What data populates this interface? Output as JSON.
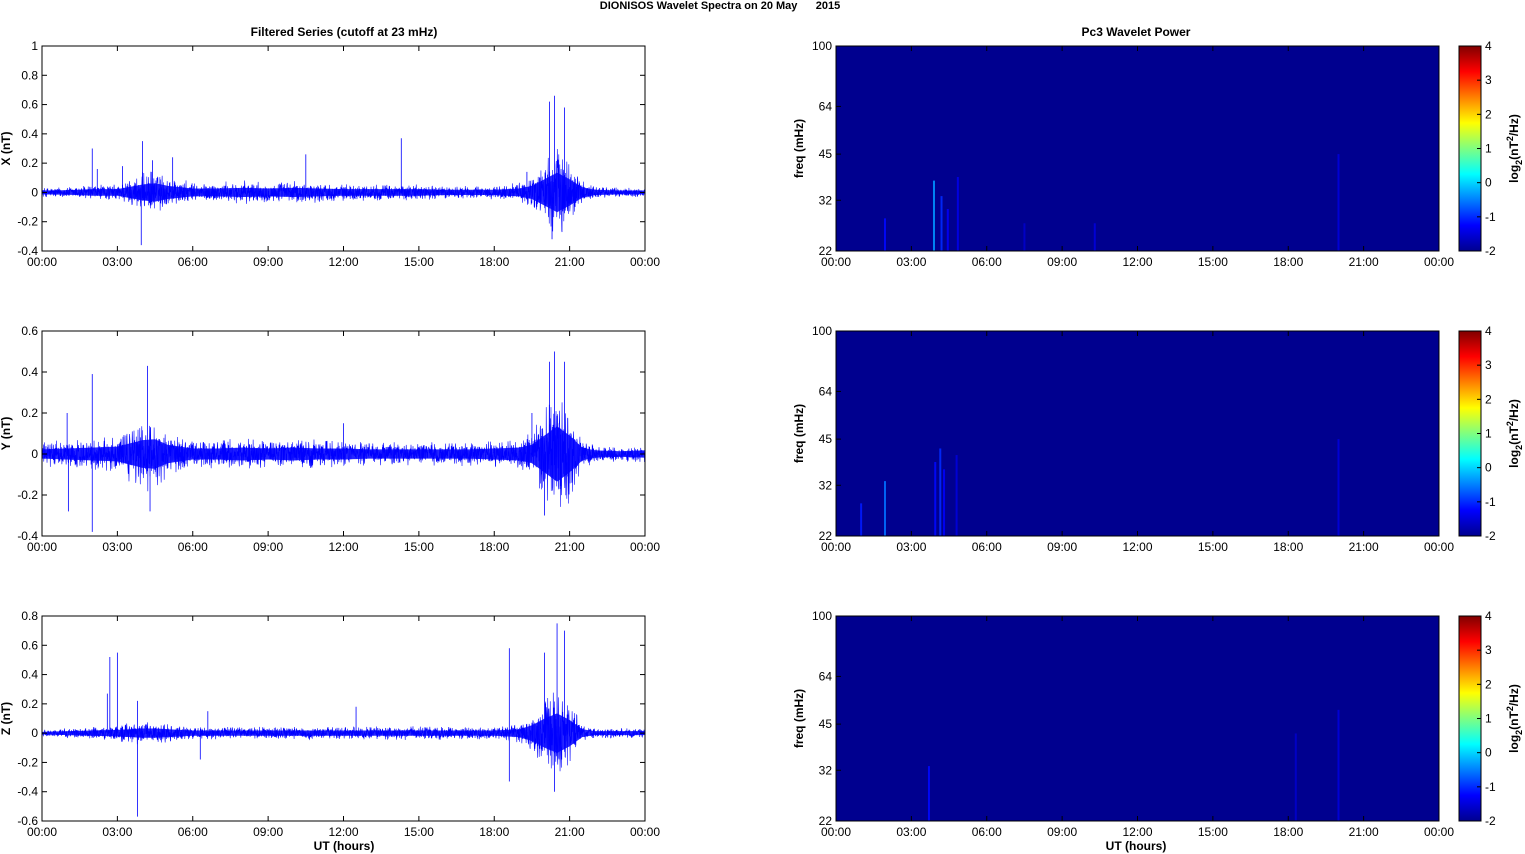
{
  "figure": {
    "title": "DIONISOS Wavelet Spectra on 20 May      2015",
    "left_column_title": "Filtered Series (cutoff at 23 mHz)",
    "right_column_title": "Pc3 Wavelet Power",
    "xlabel": "UT (hours)"
  },
  "colors": {
    "trace": "#0000ff",
    "spectrogram_background": "#00008f",
    "axis": "#000000"
  },
  "chart_data": [
    {
      "type": "line",
      "component": "X",
      "ylabel": "X (nT)",
      "x_range_hours": [
        0,
        24
      ],
      "x_ticks": [
        "00:00",
        "03:00",
        "06:00",
        "09:00",
        "12:00",
        "15:00",
        "18:00",
        "21:00",
        "00:00"
      ],
      "ylim": [
        -0.4,
        1
      ],
      "y_ticks": [
        -0.4,
        -0.2,
        0,
        0.2,
        0.4,
        0.6,
        0.8,
        1
      ],
      "envelope_hours": [
        0,
        1,
        2,
        3,
        4,
        4.5,
        5,
        6,
        7,
        8,
        9,
        10,
        11,
        12,
        13,
        14,
        15,
        16,
        17,
        18,
        19,
        19.5,
        20,
        20.5,
        21,
        21.5,
        22,
        23,
        24
      ],
      "envelope_amplitude_nT": [
        0.03,
        0.035,
        0.05,
        0.05,
        0.12,
        0.14,
        0.1,
        0.06,
        0.06,
        0.07,
        0.06,
        0.07,
        0.06,
        0.05,
        0.05,
        0.05,
        0.05,
        0.04,
        0.04,
        0.04,
        0.06,
        0.1,
        0.2,
        0.3,
        0.2,
        0.08,
        0.04,
        0.03,
        0.03
      ],
      "spikes": [
        {
          "t": 2.0,
          "v": 0.3
        },
        {
          "t": 2.2,
          "v": 0.16
        },
        {
          "t": 3.2,
          "v": 0.18
        },
        {
          "t": 4.0,
          "v": 0.35
        },
        {
          "t": 3.95,
          "v": -0.36
        },
        {
          "t": 4.4,
          "v": 0.22
        },
        {
          "t": 5.2,
          "v": 0.24
        },
        {
          "t": 10.5,
          "v": 0.26
        },
        {
          "t": 14.3,
          "v": 0.37
        },
        {
          "t": 19.3,
          "v": 0.14
        },
        {
          "t": 20.2,
          "v": 0.62
        },
        {
          "t": 20.4,
          "v": 0.66
        },
        {
          "t": 20.8,
          "v": 0.58
        },
        {
          "t": 20.3,
          "v": -0.32
        }
      ]
    },
    {
      "type": "line",
      "component": "Y",
      "ylabel": "Y (nT)",
      "x_range_hours": [
        0,
        24
      ],
      "x_ticks": [
        "00:00",
        "03:00",
        "06:00",
        "09:00",
        "12:00",
        "15:00",
        "18:00",
        "21:00",
        "00:00"
      ],
      "ylim": [
        -0.4,
        0.6
      ],
      "y_ticks": [
        -0.4,
        -0.2,
        0,
        0.2,
        0.4,
        0.6
      ],
      "envelope_hours": [
        0,
        1,
        2,
        3,
        4,
        4.5,
        5,
        6,
        7,
        8,
        9,
        10,
        11,
        12,
        13,
        14,
        15,
        16,
        17,
        18,
        19,
        19.5,
        20,
        20.5,
        21,
        21.5,
        22,
        23,
        24
      ],
      "envelope_amplitude_nT": [
        0.05,
        0.06,
        0.07,
        0.08,
        0.15,
        0.16,
        0.1,
        0.06,
        0.06,
        0.07,
        0.06,
        0.07,
        0.06,
        0.06,
        0.05,
        0.05,
        0.05,
        0.05,
        0.05,
        0.06,
        0.07,
        0.1,
        0.2,
        0.3,
        0.2,
        0.07,
        0.04,
        0.03,
        0.04
      ],
      "spikes": [
        {
          "t": 1.0,
          "v": 0.2
        },
        {
          "t": 1.05,
          "v": -0.28
        },
        {
          "t": 2.0,
          "v": 0.39
        },
        {
          "t": 2.0,
          "v": -0.38
        },
        {
          "t": 4.2,
          "v": 0.43
        },
        {
          "t": 4.3,
          "v": -0.28
        },
        {
          "t": 12.0,
          "v": 0.15
        },
        {
          "t": 19.5,
          "v": 0.2
        },
        {
          "t": 20.2,
          "v": 0.45
        },
        {
          "t": 20.4,
          "v": 0.5
        },
        {
          "t": 20.8,
          "v": 0.45
        },
        {
          "t": 20.0,
          "v": -0.3
        }
      ]
    },
    {
      "type": "line",
      "component": "Z",
      "ylabel": "Z (nT)",
      "x_range_hours": [
        0,
        24
      ],
      "x_ticks": [
        "00:00",
        "03:00",
        "06:00",
        "09:00",
        "12:00",
        "15:00",
        "18:00",
        "21:00",
        "00:00"
      ],
      "ylim": [
        -0.6,
        0.8
      ],
      "y_ticks": [
        -0.6,
        -0.4,
        -0.2,
        0,
        0.2,
        0.4,
        0.6,
        0.8
      ],
      "envelope_hours": [
        0,
        1,
        2,
        3,
        4,
        4.5,
        5,
        6,
        7,
        8,
        9,
        10,
        11,
        12,
        13,
        14,
        15,
        16,
        17,
        18,
        19,
        19.5,
        20,
        20.5,
        21,
        21.5,
        22,
        23,
        24
      ],
      "envelope_amplitude_nT": [
        0.02,
        0.03,
        0.04,
        0.05,
        0.07,
        0.07,
        0.06,
        0.04,
        0.04,
        0.04,
        0.04,
        0.04,
        0.04,
        0.04,
        0.04,
        0.04,
        0.04,
        0.04,
        0.04,
        0.04,
        0.06,
        0.12,
        0.22,
        0.3,
        0.2,
        0.06,
        0.03,
        0.03,
        0.03
      ],
      "spikes": [
        {
          "t": 2.6,
          "v": 0.27
        },
        {
          "t": 2.7,
          "v": 0.52
        },
        {
          "t": 3.0,
          "v": 0.55
        },
        {
          "t": 3.8,
          "v": 0.22
        },
        {
          "t": 3.8,
          "v": -0.57
        },
        {
          "t": 6.3,
          "v": -0.18
        },
        {
          "t": 6.6,
          "v": 0.15
        },
        {
          "t": 12.5,
          "v": 0.18
        },
        {
          "t": 18.6,
          "v": 0.58
        },
        {
          "t": 18.6,
          "v": -0.33
        },
        {
          "t": 20.0,
          "v": 0.55
        },
        {
          "t": 20.5,
          "v": 0.75
        },
        {
          "t": 20.8,
          "v": 0.7
        },
        {
          "t": 20.4,
          "v": -0.4
        }
      ]
    },
    {
      "type": "heatmap",
      "component": "X",
      "ylabel": "freq (mHz)",
      "x_range_hours": [
        0,
        24
      ],
      "x_ticks": [
        "00:00",
        "03:00",
        "06:00",
        "09:00",
        "12:00",
        "15:00",
        "18:00",
        "21:00",
        "00:00"
      ],
      "y_range_mHz": [
        22,
        100
      ],
      "y_ticks": [
        22,
        32,
        45,
        64,
        100
      ],
      "y_scale": "log",
      "colorbar_label_prefix": "log",
      "colorbar_label_sub": "2",
      "colorbar_label_mid": "(nT",
      "colorbar_label_sup": "2",
      "colorbar_label_suffix": "/Hz)",
      "clim": [
        -2,
        4
      ],
      "colorbar_ticks": [
        -2,
        -1,
        0,
        1,
        2,
        3,
        4
      ],
      "features": [
        {
          "t": 1.95,
          "f_top": 28,
          "level": -1.2
        },
        {
          "t": 3.9,
          "f_top": 37,
          "level": -0.4
        },
        {
          "t": 4.2,
          "f_top": 33,
          "level": -1.0
        },
        {
          "t": 4.45,
          "f_top": 30,
          "level": -1.3
        },
        {
          "t": 4.85,
          "f_top": 38,
          "level": -1.4
        },
        {
          "t": 7.5,
          "f_top": 27,
          "level": -1.6
        },
        {
          "t": 10.3,
          "f_top": 27,
          "level": -1.5
        },
        {
          "t": 20.0,
          "f_top": 45,
          "level": -1.5
        }
      ]
    },
    {
      "type": "heatmap",
      "component": "Y",
      "ylabel": "freq (mHz)",
      "x_range_hours": [
        0,
        24
      ],
      "x_ticks": [
        "00:00",
        "03:00",
        "06:00",
        "09:00",
        "12:00",
        "15:00",
        "18:00",
        "21:00",
        "00:00"
      ],
      "y_range_mHz": [
        22,
        100
      ],
      "y_ticks": [
        22,
        32,
        45,
        64,
        100
      ],
      "y_scale": "log",
      "colorbar_label_prefix": "log",
      "colorbar_label_sub": "2",
      "colorbar_label_mid": "(nT",
      "colorbar_label_sup": "2",
      "colorbar_label_suffix": "/Hz)",
      "clim": [
        -2,
        4
      ],
      "colorbar_ticks": [
        -2,
        -1,
        0,
        1,
        2,
        3,
        4
      ],
      "features": [
        {
          "t": 1.0,
          "f_top": 28,
          "level": -1.1
        },
        {
          "t": 1.95,
          "f_top": 33,
          "level": -0.6
        },
        {
          "t": 3.95,
          "f_top": 38,
          "level": -1.2
        },
        {
          "t": 4.15,
          "f_top": 42,
          "level": -1.0
        },
        {
          "t": 4.3,
          "f_top": 36,
          "level": -1.3
        },
        {
          "t": 4.8,
          "f_top": 40,
          "level": -1.5
        },
        {
          "t": 20.0,
          "f_top": 45,
          "level": -1.5
        }
      ]
    },
    {
      "type": "heatmap",
      "component": "Z",
      "ylabel": "freq (mHz)",
      "x_range_hours": [
        0,
        24
      ],
      "x_ticks": [
        "00:00",
        "03:00",
        "06:00",
        "09:00",
        "12:00",
        "15:00",
        "18:00",
        "21:00",
        "00:00"
      ],
      "y_range_mHz": [
        22,
        100
      ],
      "y_ticks": [
        22,
        32,
        45,
        64,
        100
      ],
      "y_scale": "log",
      "colorbar_label_prefix": "log",
      "colorbar_label_sub": "2",
      "colorbar_label_mid": "(nT",
      "colorbar_label_sup": "2",
      "colorbar_label_suffix": "/Hz)",
      "clim": [
        -2,
        4
      ],
      "colorbar_ticks": [
        -2,
        -1,
        0,
        1,
        2,
        3,
        4
      ],
      "features": [
        {
          "t": 3.7,
          "f_top": 33,
          "level": -1.2
        },
        {
          "t": 18.3,
          "f_top": 42,
          "level": -1.6
        },
        {
          "t": 20.0,
          "f_top": 50,
          "level": -1.5
        }
      ]
    }
  ]
}
